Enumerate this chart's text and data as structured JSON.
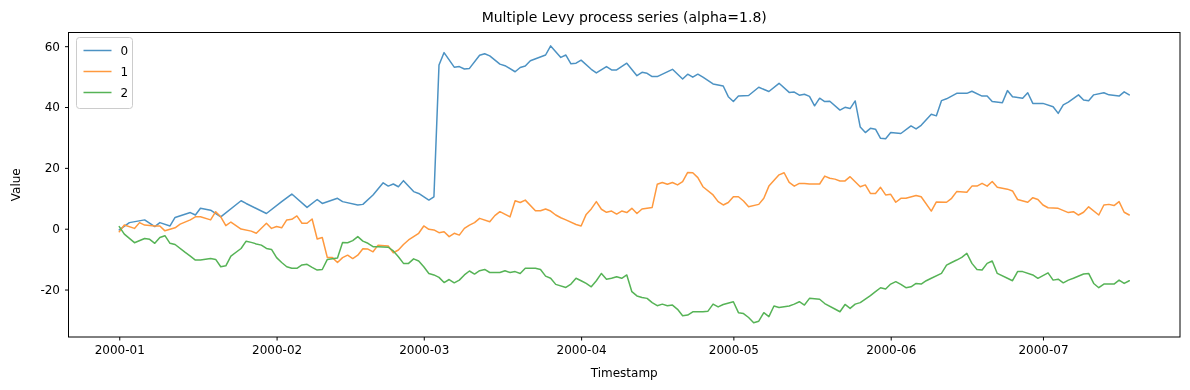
{
  "chart_data": {
    "type": "line",
    "title": "Multiple Levy process series (alpha=1.8)",
    "xlabel": "Timestamp",
    "ylabel": "Value",
    "xlim": [
      "1999-12-22",
      "2000-07-28"
    ],
    "xticks": [
      {
        "value": "2000-01-01",
        "label": "2000-01"
      },
      {
        "value": "2000-02-01",
        "label": "2000-02"
      },
      {
        "value": "2000-03-01",
        "label": "2000-03"
      },
      {
        "value": "2000-04-01",
        "label": "2000-04"
      },
      {
        "value": "2000-05-01",
        "label": "2000-05"
      },
      {
        "value": "2000-06-01",
        "label": "2000-06"
      },
      {
        "value": "2000-07-01",
        "label": "2000-07"
      }
    ],
    "ylim": [
      -35.6,
      64.5
    ],
    "yticks": [
      -20,
      0,
      20,
      40,
      60
    ],
    "grid": false,
    "legend": "top left",
    "marker": "none",
    "line_style": "solid",
    "series": [
      {
        "name": "0",
        "color": "#4c92c3",
        "x": [
          "2000-01-01",
          "2000-01-03",
          "2000-01-06",
          "2000-01-08",
          "2000-01-09",
          "2000-01-11",
          "2000-01-12",
          "2000-01-15",
          "2000-01-16",
          "2000-01-17",
          "2000-01-19",
          "2000-01-21",
          "2000-01-25",
          "2000-01-26",
          "2000-01-30",
          "2000-02-02",
          "2000-02-04",
          "2000-02-07",
          "2000-02-09",
          "2000-02-10",
          "2000-02-13",
          "2000-02-14",
          "2000-02-17",
          "2000-02-18",
          "2000-02-20",
          "2000-02-22",
          "2000-02-23",
          "2000-02-24",
          "2000-02-25",
          "2000-02-26",
          "2000-02-28",
          "2000-02-29",
          "2000-03-02",
          "2000-03-03",
          "2000-03-04",
          "2000-03-05",
          "2000-03-07",
          "2000-03-08",
          "2000-03-09",
          "2000-03-10",
          "2000-03-12",
          "2000-03-13",
          "2000-03-14",
          "2000-03-16",
          "2000-03-17",
          "2000-03-19",
          "2000-03-20",
          "2000-03-21",
          "2000-03-22",
          "2000-03-25",
          "2000-03-26",
          "2000-03-28",
          "2000-03-29",
          "2000-03-30",
          "2000-03-31",
          "2000-04-01",
          "2000-04-03",
          "2000-04-04",
          "2000-04-06",
          "2000-04-07",
          "2000-04-08",
          "2000-04-10",
          "2000-04-12",
          "2000-04-13",
          "2000-04-14",
          "2000-04-15",
          "2000-04-16",
          "2000-04-19",
          "2000-04-21",
          "2000-04-22",
          "2000-04-23",
          "2000-04-24",
          "2000-04-25",
          "2000-04-27",
          "2000-04-29",
          "2000-04-30",
          "2000-05-01",
          "2000-05-02",
          "2000-05-04",
          "2000-05-06",
          "2000-05-08",
          "2000-05-10",
          "2000-05-12",
          "2000-05-13",
          "2000-05-14",
          "2000-05-15",
          "2000-05-16",
          "2000-05-17",
          "2000-05-18",
          "2000-05-19",
          "2000-05-20",
          "2000-05-22",
          "2000-05-23",
          "2000-05-24",
          "2000-05-25",
          "2000-05-26",
          "2000-05-27",
          "2000-05-28",
          "2000-05-29",
          "2000-05-30",
          "2000-05-31",
          "2000-06-01",
          "2000-06-03",
          "2000-06-05",
          "2000-06-06",
          "2000-06-07",
          "2000-06-09",
          "2000-06-10",
          "2000-06-11",
          "2000-06-12",
          "2000-06-14",
          "2000-06-16",
          "2000-06-17",
          "2000-06-19",
          "2000-06-20",
          "2000-06-21",
          "2000-06-23",
          "2000-06-24",
          "2000-06-25",
          "2000-06-27",
          "2000-06-28",
          "2000-06-29",
          "2000-07-01",
          "2000-07-03",
          "2000-07-04",
          "2000-07-05",
          "2000-07-06",
          "2000-07-08",
          "2000-07-09",
          "2000-07-10",
          "2000-07-11",
          "2000-07-13",
          "2000-07-14",
          "2000-07-16",
          "2000-07-17",
          "2000-07-18"
        ],
        "values": [
          -0.4,
          2.0,
          2.9,
          0.7,
          2.0,
          0.9,
          3.7,
          5.3,
          4.5,
          6.7,
          6.1,
          3.9,
          9.2,
          8.3,
          5.0,
          8.9,
          11.4,
          7.0,
          9.6,
          8.3,
          10.0,
          8.9,
          7.8,
          8.0,
          11.1,
          15.1,
          14.0,
          14.7,
          13.8,
          15.8,
          12.2,
          11.6,
          9.4,
          10.5,
          53.8,
          57.9,
          53.1,
          53.3,
          52.5,
          52.7,
          57.0,
          57.5,
          56.8,
          54.1,
          53.6,
          51.6,
          53.0,
          53.5,
          55.2,
          57.1,
          60.1,
          56.3,
          57.1,
          54.2,
          54.4,
          55.4,
          52.4,
          51.2,
          53.3,
          52.2,
          52.2,
          54.4,
          50.3,
          51.4,
          51.1,
          50.0,
          50.0,
          52.4,
          49.2,
          50.8,
          49.8,
          50.8,
          49.8,
          47.6,
          46.9,
          43.4,
          41.8,
          43.6,
          43.8,
          46.5,
          45.1,
          47.8,
          44.8,
          44.9,
          43.9,
          44.2,
          43.5,
          40.4,
          42.9,
          41.8,
          41.9,
          39.0,
          39.9,
          39.5,
          42.0,
          33.4,
          31.6,
          33.0,
          32.7,
          29.7,
          29.6,
          31.6,
          31.3,
          33.8,
          32.8,
          34.0,
          37.6,
          37.1,
          42.1,
          42.7,
          44.5,
          44.5,
          45.2,
          43.6,
          43.6,
          41.8,
          41.4,
          45.4,
          43.4,
          42.9,
          44.7,
          41.2,
          41.2,
          40.1,
          37.9,
          40.7,
          41.6,
          44.0,
          42.3,
          42.1,
          44.0,
          44.7,
          44.0,
          43.6,
          45.0,
          44.0
        ]
      },
      {
        "name": "1",
        "color": "#ff993e",
        "x": [
          "2000-01-01",
          "2000-01-02",
          "2000-01-04",
          "2000-01-05",
          "2000-01-06",
          "2000-01-08",
          "2000-01-09",
          "2000-01-10",
          "2000-01-12",
          "2000-01-13",
          "2000-01-15",
          "2000-01-16",
          "2000-01-17",
          "2000-01-19",
          "2000-01-20",
          "2000-01-21",
          "2000-01-22",
          "2000-01-23",
          "2000-01-25",
          "2000-01-27",
          "2000-01-28",
          "2000-01-30",
          "2000-01-31",
          "2000-02-01",
          "2000-02-02",
          "2000-02-03",
          "2000-02-04",
          "2000-02-05",
          "2000-02-06",
          "2000-02-07",
          "2000-02-08",
          "2000-02-09",
          "2000-02-10",
          "2000-02-11",
          "2000-02-12",
          "2000-02-13",
          "2000-02-14",
          "2000-02-15",
          "2000-02-16",
          "2000-02-17",
          "2000-02-18",
          "2000-02-19",
          "2000-02-20",
          "2000-02-21",
          "2000-02-23",
          "2000-02-24",
          "2000-02-25",
          "2000-02-26",
          "2000-02-27",
          "2000-02-29",
          "2000-03-01",
          "2000-03-02",
          "2000-03-03",
          "2000-03-04",
          "2000-03-05",
          "2000-03-06",
          "2000-03-07",
          "2000-03-08",
          "2000-03-09",
          "2000-03-10",
          "2000-03-11",
          "2000-03-12",
          "2000-03-14",
          "2000-03-15",
          "2000-03-16",
          "2000-03-18",
          "2000-03-19",
          "2000-03-20",
          "2000-03-21",
          "2000-03-23",
          "2000-03-24",
          "2000-03-25",
          "2000-03-26",
          "2000-03-27",
          "2000-03-28",
          "2000-03-29",
          "2000-03-31",
          "2000-04-01",
          "2000-04-02",
          "2000-04-03",
          "2000-04-04",
          "2000-04-05",
          "2000-04-06",
          "2000-04-07",
          "2000-04-08",
          "2000-04-09",
          "2000-04-10",
          "2000-04-11",
          "2000-04-12",
          "2000-04-13",
          "2000-04-15",
          "2000-04-16",
          "2000-04-17",
          "2000-04-18",
          "2000-04-19",
          "2000-04-20",
          "2000-04-21",
          "2000-04-22",
          "2000-04-23",
          "2000-04-24",
          "2000-04-25",
          "2000-04-27",
          "2000-04-28",
          "2000-04-29",
          "2000-04-30",
          "2000-05-01",
          "2000-05-02",
          "2000-05-03",
          "2000-05-04",
          "2000-05-06",
          "2000-05-07",
          "2000-05-08",
          "2000-05-10",
          "2000-05-11",
          "2000-05-12",
          "2000-05-13",
          "2000-05-14",
          "2000-05-15",
          "2000-05-16",
          "2000-05-18",
          "2000-05-19",
          "2000-05-20",
          "2000-05-21",
          "2000-05-22",
          "2000-05-23",
          "2000-05-24",
          "2000-05-26",
          "2000-05-27",
          "2000-05-28",
          "2000-05-29",
          "2000-05-30",
          "2000-05-31",
          "2000-06-01",
          "2000-06-02",
          "2000-06-03",
          "2000-06-04",
          "2000-06-06",
          "2000-06-07",
          "2000-06-09",
          "2000-06-10",
          "2000-06-12",
          "2000-06-13",
          "2000-06-14",
          "2000-06-16",
          "2000-06-17",
          "2000-06-18",
          "2000-06-19",
          "2000-06-20",
          "2000-06-21",
          "2000-06-22",
          "2000-06-24",
          "2000-06-25",
          "2000-06-26",
          "2000-06-28",
          "2000-06-29",
          "2000-06-30",
          "2000-07-01",
          "2000-07-02",
          "2000-07-04",
          "2000-07-06",
          "2000-07-07",
          "2000-07-08",
          "2000-07-09",
          "2000-07-10",
          "2000-07-12",
          "2000-07-13",
          "2000-07-14",
          "2000-07-15",
          "2000-07-16",
          "2000-07-17",
          "2000-07-18"
        ],
        "values": [
          -1.0,
          1.2,
          0.1,
          2.0,
          1.2,
          0.9,
          0.9,
          -0.7,
          0.3,
          1.5,
          2.9,
          3.9,
          3.9,
          2.9,
          5.6,
          3.9,
          1.0,
          2.2,
          -0.1,
          -0.8,
          -1.5,
          1.8,
          0.1,
          0.7,
          0.3,
          2.9,
          3.1,
          4.2,
          1.8,
          1.8,
          3.2,
          -3.4,
          -2.9,
          -9.5,
          -9.5,
          -11.1,
          -9.5,
          -8.7,
          -9.8,
          -8.7,
          -6.6,
          -6.7,
          -7.6,
          -5.4,
          -5.7,
          -7.9,
          -7.0,
          -5.2,
          -3.7,
          -1.5,
          0.9,
          -0.2,
          -0.4,
          -1.3,
          -1.0,
          -2.6,
          -1.5,
          -2.1,
          0.1,
          1.2,
          2.0,
          3.4,
          2.3,
          4.3,
          5.6,
          3.9,
          9.2,
          8.6,
          9.4,
          5.9,
          5.9,
          6.5,
          5.8,
          4.5,
          3.6,
          2.9,
          1.4,
          0.9,
          4.7,
          6.5,
          8.9,
          6.4,
          5.4,
          5.8,
          4.8,
          5.8,
          5.3,
          6.7,
          5.0,
          6.5,
          7.0,
          14.6,
          15.2,
          14.6,
          15.2,
          14.4,
          15.5,
          18.5,
          18.4,
          16.8,
          13.8,
          11.1,
          8.9,
          7.8,
          8.6,
          10.5,
          10.5,
          9.1,
          7.2,
          8.0,
          10.0,
          14.0,
          17.7,
          18.4,
          15.2,
          14.0,
          14.9,
          14.9,
          14.7,
          14.7,
          17.3,
          16.6,
          16.3,
          15.7,
          15.7,
          17.1,
          13.8,
          14.4,
          11.6,
          11.6,
          13.6,
          11.1,
          11.3,
          8.7,
          10.0,
          10.0,
          10.9,
          10.5,
          5.8,
          8.8,
          8.7,
          10.0,
          12.2,
          12.0,
          14.0,
          14.0,
          14.9,
          14.0,
          15.5,
          13.6,
          13.0,
          12.4,
          9.6,
          8.7,
          10.2,
          9.6,
          7.8,
          6.9,
          6.7,
          5.3,
          5.6,
          4.5,
          5.4,
          7.2,
          4.5,
          7.8,
          8.0,
          7.6,
          8.9,
          5.4,
          4.5
        ]
      },
      {
        "name": "2",
        "color": "#56b356",
        "x": [
          "2000-01-01",
          "2000-01-02",
          "2000-01-04",
          "2000-01-06",
          "2000-01-07",
          "2000-01-08",
          "2000-01-09",
          "2000-01-10",
          "2000-01-11",
          "2000-01-12",
          "2000-01-14",
          "2000-01-15",
          "2000-01-16",
          "2000-01-17",
          "2000-01-19",
          "2000-01-20",
          "2000-01-21",
          "2000-01-22",
          "2000-01-23",
          "2000-01-25",
          "2000-01-26",
          "2000-01-27",
          "2000-01-28",
          "2000-01-29",
          "2000-01-30",
          "2000-01-31",
          "2000-02-01",
          "2000-02-02",
          "2000-02-03",
          "2000-02-04",
          "2000-02-05",
          "2000-02-06",
          "2000-02-07",
          "2000-02-08",
          "2000-02-09",
          "2000-02-10",
          "2000-02-11",
          "2000-02-13",
          "2000-02-14",
          "2000-02-15",
          "2000-02-16",
          "2000-02-17",
          "2000-02-18",
          "2000-02-19",
          "2000-02-20",
          "2000-02-21",
          "2000-02-23",
          "2000-02-24",
          "2000-02-25",
          "2000-02-26",
          "2000-02-27",
          "2000-02-28",
          "2000-02-29",
          "2000-03-01",
          "2000-03-02",
          "2000-03-03",
          "2000-03-04",
          "2000-03-05",
          "2000-03-06",
          "2000-03-07",
          "2000-03-08",
          "2000-03-09",
          "2000-03-10",
          "2000-03-11",
          "2000-03-12",
          "2000-03-13",
          "2000-03-14",
          "2000-03-16",
          "2000-03-17",
          "2000-03-18",
          "2000-03-19",
          "2000-03-20",
          "2000-03-21",
          "2000-03-23",
          "2000-03-24",
          "2000-03-25",
          "2000-03-26",
          "2000-03-27",
          "2000-03-29",
          "2000-03-30",
          "2000-03-31",
          "2000-04-01",
          "2000-04-02",
          "2000-04-03",
          "2000-04-04",
          "2000-04-05",
          "2000-04-06",
          "2000-04-07",
          "2000-04-08",
          "2000-04-09",
          "2000-04-10",
          "2000-04-11",
          "2000-04-12",
          "2000-04-13",
          "2000-04-14",
          "2000-04-15",
          "2000-04-16",
          "2000-04-17",
          "2000-04-18",
          "2000-04-19",
          "2000-04-20",
          "2000-04-21",
          "2000-04-22",
          "2000-04-23",
          "2000-04-25",
          "2000-04-26",
          "2000-04-27",
          "2000-04-28",
          "2000-04-29",
          "2000-05-01",
          "2000-05-02",
          "2000-05-03",
          "2000-05-04",
          "2000-05-05",
          "2000-05-06",
          "2000-05-07",
          "2000-05-08",
          "2000-05-09",
          "2000-05-10",
          "2000-05-12",
          "2000-05-13",
          "2000-05-14",
          "2000-05-15",
          "2000-05-16",
          "2000-05-18",
          "2000-05-19",
          "2000-05-21",
          "2000-05-22",
          "2000-05-23",
          "2000-05-24",
          "2000-05-25",
          "2000-05-26",
          "2000-05-28",
          "2000-05-29",
          "2000-05-30",
          "2000-05-31",
          "2000-06-01",
          "2000-06-02",
          "2000-06-03",
          "2000-06-04",
          "2000-06-05",
          "2000-06-06",
          "2000-06-07",
          "2000-06-08",
          "2000-06-09",
          "2000-06-11",
          "2000-06-12",
          "2000-06-13",
          "2000-06-14",
          "2000-06-15",
          "2000-06-16",
          "2000-06-17",
          "2000-06-18",
          "2000-06-19",
          "2000-06-20",
          "2000-06-21",
          "2000-06-22",
          "2000-06-24",
          "2000-06-25",
          "2000-06-26",
          "2000-06-27",
          "2000-06-29",
          "2000-06-30",
          "2000-07-02",
          "2000-07-03",
          "2000-07-04",
          "2000-07-05",
          "2000-07-06",
          "2000-07-07",
          "2000-07-09",
          "2000-07-10",
          "2000-07-11",
          "2000-07-12",
          "2000-07-13",
          "2000-07-15",
          "2000-07-16",
          "2000-07-17",
          "2000-07-18"
        ],
        "values": [
          0.7,
          -1.8,
          -4.6,
          -3.2,
          -3.5,
          -4.8,
          -2.9,
          -2.3,
          -4.8,
          -5.2,
          -7.8,
          -9.0,
          -10.3,
          -10.3,
          -9.8,
          -10.1,
          -12.5,
          -12.2,
          -9.0,
          -6.5,
          -4.1,
          -4.5,
          -5.0,
          -5.4,
          -6.5,
          -6.8,
          -9.5,
          -11.1,
          -12.5,
          -13.0,
          -13.0,
          -11.9,
          -11.7,
          -12.7,
          -13.6,
          -13.4,
          -10.1,
          -9.6,
          -4.5,
          -4.6,
          -3.9,
          -2.6,
          -4.1,
          -4.8,
          -5.9,
          -5.9,
          -6.1,
          -7.3,
          -9.2,
          -11.4,
          -11.4,
          -9.9,
          -10.6,
          -12.5,
          -14.7,
          -15.2,
          -16.0,
          -17.7,
          -16.7,
          -17.8,
          -16.9,
          -15.2,
          -13.9,
          -14.9,
          -13.8,
          -13.4,
          -14.4,
          -14.4,
          -13.8,
          -14.4,
          -14.1,
          -14.7,
          -13.0,
          -13.0,
          -13.4,
          -15.6,
          -16.3,
          -18.3,
          -19.3,
          -18.2,
          -16.3,
          -17.1,
          -18.0,
          -19.1,
          -17.1,
          -14.7,
          -16.6,
          -16.3,
          -15.8,
          -16.3,
          -15.2,
          -20.7,
          -22.1,
          -22.6,
          -22.9,
          -24.3,
          -25.3,
          -24.8,
          -25.3,
          -25.1,
          -26.5,
          -28.6,
          -28.4,
          -27.3,
          -27.3,
          -27.1,
          -24.8,
          -25.7,
          -24.9,
          -24.0,
          -27.6,
          -27.9,
          -29.2,
          -30.9,
          -30.4,
          -27.6,
          -28.9,
          -25.4,
          -25.9,
          -25.4,
          -24.8,
          -24.0,
          -25.1,
          -22.9,
          -23.2,
          -24.6,
          -26.4,
          -27.3,
          -24.9,
          -26.2,
          -24.8,
          -24.3,
          -22.0,
          -20.7,
          -19.4,
          -19.8,
          -18.2,
          -17.4,
          -18.3,
          -19.4,
          -19.1,
          -18.0,
          -18.2,
          -17.1,
          -16.3,
          -14.7,
          -12.0,
          -11.1,
          -10.3,
          -9.4,
          -8.1,
          -11.4,
          -13.4,
          -13.6,
          -11.4,
          -10.6,
          -14.7,
          -16.3,
          -17.1,
          -14.1,
          -14.1,
          -15.2,
          -16.3,
          -14.5,
          -16.9,
          -16.6,
          -17.8,
          -16.9,
          -16.3,
          -14.9,
          -14.7,
          -18.0,
          -19.4,
          -18.2,
          -18.2,
          -16.9,
          -18.0,
          -17.1
        ]
      }
    ]
  }
}
